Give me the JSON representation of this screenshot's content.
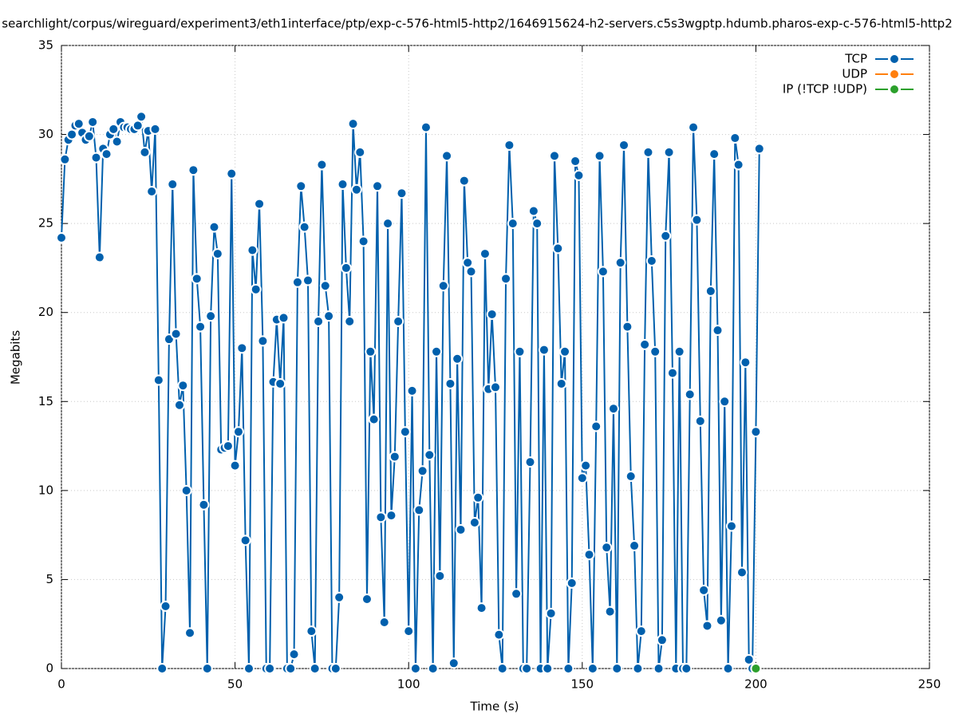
{
  "chart_data": {
    "type": "line",
    "title": "searchlight/corpus/wireguard/experiment3/eth1interface/ptp/exp-c-576-html5-http2/1646915624-h2-servers.c5s3wgptp.hdumb.pharos-exp-c-576-html5-http2",
    "xlabel": "Time (s)",
    "ylabel": "Megabits",
    "xlim": [
      0,
      250
    ],
    "xticks": [
      0,
      50,
      100,
      150,
      200,
      250
    ],
    "ylim": [
      0,
      35
    ],
    "yticks": [
      0,
      5,
      10,
      15,
      20,
      25,
      30,
      35
    ],
    "grid": true,
    "legend": "top-right",
    "series": [
      {
        "name": "TCP",
        "color": "#0060ad",
        "x": [
          0,
          1,
          2,
          3,
          4,
          5,
          6,
          7,
          8,
          9,
          10,
          11,
          12,
          13,
          14,
          15,
          16,
          17,
          18,
          19,
          20,
          21,
          22,
          23,
          24,
          25,
          26,
          27,
          28,
          29,
          30,
          31,
          32,
          33,
          34,
          35,
          36,
          37,
          38,
          39,
          40,
          41,
          42,
          43,
          44,
          45,
          46,
          47,
          48,
          49,
          50,
          51,
          52,
          53,
          54,
          55,
          56,
          57,
          58,
          59,
          60,
          61,
          62,
          63,
          64,
          65,
          66,
          67,
          68,
          69,
          70,
          71,
          72,
          73,
          74,
          75,
          76,
          77,
          78,
          79,
          80,
          81,
          82,
          83,
          84,
          85,
          86,
          87,
          88,
          89,
          90,
          91,
          92,
          93,
          94,
          95,
          96,
          97,
          98,
          99,
          100,
          101,
          102,
          103,
          104,
          105,
          106,
          107,
          108,
          109,
          110,
          111,
          112,
          113,
          114,
          115,
          116,
          117,
          118,
          119,
          120,
          121,
          122,
          123,
          124,
          125,
          126,
          127,
          128,
          129,
          130,
          131,
          132,
          133,
          134,
          135,
          136,
          137,
          138,
          139,
          140,
          141,
          142,
          143,
          144,
          145,
          146,
          147,
          148,
          149,
          150,
          151,
          152,
          153,
          154,
          155,
          156,
          157,
          158,
          159,
          160,
          161,
          162,
          163,
          164,
          165,
          166,
          167,
          168,
          169,
          170,
          171,
          172,
          173,
          174,
          175,
          176,
          177,
          178,
          179,
          180,
          181,
          182,
          183,
          184,
          185,
          186,
          187,
          188,
          189,
          190,
          191,
          192,
          193,
          194,
          195,
          196,
          197,
          198,
          199,
          200,
          201
        ],
        "values": [
          24.2,
          28.6,
          29.7,
          30.0,
          30.5,
          30.6,
          30.1,
          29.7,
          29.9,
          30.7,
          28.7,
          23.1,
          29.2,
          28.9,
          30.0,
          30.3,
          29.6,
          30.7,
          30.4,
          30.4,
          30.3,
          30.3,
          30.5,
          31.0,
          29.0,
          30.2,
          26.8,
          30.3,
          16.2,
          0,
          3.5,
          18.5,
          27.2,
          18.8,
          14.8,
          15.9,
          10.0,
          2.0,
          28.0,
          21.9,
          19.2,
          9.2,
          0,
          19.8,
          24.8,
          23.3,
          12.3,
          12.4,
          12.5,
          27.8,
          11.4,
          13.3,
          18.0,
          7.2,
          0,
          23.5,
          21.3,
          26.1,
          18.4,
          0,
          0,
          16.1,
          19.6,
          16.0,
          19.7,
          0,
          0,
          0.8,
          21.7,
          27.1,
          24.8,
          21.8,
          2.1,
          0,
          19.5,
          28.3,
          21.5,
          19.8,
          0,
          0,
          4.0,
          27.2,
          22.5,
          19.5,
          30.6,
          26.9,
          29.0,
          24.0,
          3.9,
          17.8,
          14.0,
          27.1,
          8.5,
          2.6,
          25.0,
          8.6,
          11.9,
          19.5,
          26.7,
          13.3,
          2.1,
          15.6,
          0,
          8.9,
          11.1,
          30.4,
          12.0,
          0,
          17.8,
          5.2,
          21.5,
          28.8,
          16.0,
          0.3,
          17.4,
          7.8,
          27.4,
          22.8,
          22.3,
          8.2,
          9.6,
          3.4,
          23.3,
          15.7,
          19.9,
          15.8,
          1.9,
          0,
          21.9,
          29.4,
          25.0,
          4.2,
          17.8,
          0,
          0,
          11.6,
          25.7,
          25.0,
          0,
          17.9,
          0,
          3.1,
          28.8,
          23.6,
          16.0,
          17.8,
          0,
          4.8,
          28.5,
          27.7,
          10.7,
          11.4,
          6.4,
          0,
          13.6,
          28.8,
          22.3,
          6.8,
          3.2,
          14.6,
          0,
          22.8,
          29.4,
          19.2,
          10.8,
          6.9,
          0,
          2.1,
          18.2,
          29.0,
          22.9,
          17.8,
          0,
          1.6,
          24.3,
          29.0,
          16.6,
          0,
          17.8,
          0,
          0,
          15.4,
          30.4,
          25.2,
          13.9,
          4.4,
          2.4,
          21.2,
          28.9,
          19.0,
          2.7,
          15.0,
          0,
          8.0,
          29.8,
          28.3,
          5.4,
          17.2,
          0.5,
          0,
          13.3,
          29.2
        ]
      },
      {
        "name": "UDP",
        "color": "#ff7f0e",
        "x": [
          200
        ],
        "values": [
          0
        ]
      },
      {
        "name": "IP (!TCP  !UDP)",
        "color": "#2ca02c",
        "x": [
          200
        ],
        "values": [
          0
        ]
      }
    ]
  }
}
